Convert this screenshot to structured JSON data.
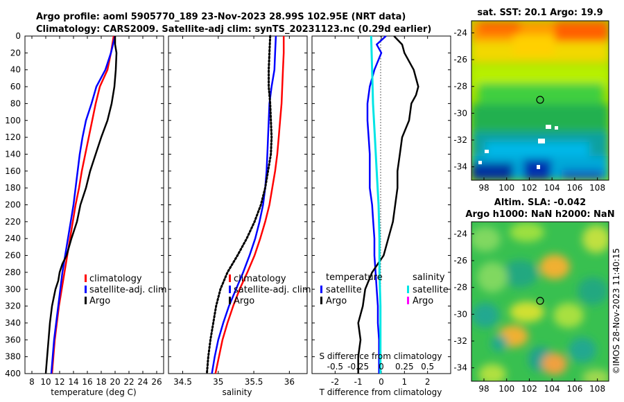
{
  "header": {
    "line1": "Argo profile: aoml 5905770_189 23-Nov-2023 28.99S 102.95E (NRT data)",
    "line2": "Climatology: CARS2009. Satellite-adj clim: synTS_20231123.nc (0.29d earlier)"
  },
  "depth_ticks": [
    "0",
    "20",
    "40",
    "60",
    "80",
    "100",
    "120",
    "140",
    "160",
    "180",
    "200",
    "220",
    "240",
    "260",
    "280",
    "300",
    "320",
    "340",
    "360",
    "380",
    "400"
  ],
  "watermark": "©IMOS 28-Nov-2023 11:40:15",
  "colors": {
    "climatology": "#ff0000",
    "satellite": "#0000ff",
    "argo": "#000000",
    "salinity_sat": "#00e5e5",
    "salinity_argo": "#ff00ff"
  },
  "chart_data": [
    {
      "type": "line",
      "panel": "temperature",
      "xlabel": "temperature (deg C)",
      "ylabel": "",
      "xlim": [
        7,
        27
      ],
      "ylim": [
        400,
        0
      ],
      "xticks": [
        8,
        10,
        12,
        14,
        16,
        18,
        20,
        22,
        24,
        26
      ],
      "xtick_labels": [
        "8",
        "10",
        "12",
        "14",
        "16",
        "18",
        "20",
        "22",
        "24",
        "26"
      ],
      "legend": [
        "climatology",
        "satellite-adj. clim",
        "Argo"
      ],
      "legend_position": "bottom-right",
      "series": [
        {
          "name": "climatology",
          "color": "#ff0000",
          "depth": [
            0,
            20,
            40,
            60,
            80,
            100,
            120,
            140,
            160,
            180,
            200,
            220,
            240,
            260,
            280,
            300,
            320,
            340,
            360,
            380,
            400
          ],
          "values": [
            19.8,
            19.4,
            18.9,
            17.8,
            17.2,
            16.7,
            16.2,
            15.7,
            15.2,
            14.8,
            14.3,
            13.9,
            13.5,
            13.1,
            12.7,
            12.3,
            11.9,
            11.6,
            11.3,
            11.1,
            10.9
          ]
        },
        {
          "name": "satellite-adj. clim",
          "color": "#0000ff",
          "depth": [
            0,
            20,
            40,
            60,
            80,
            100,
            120,
            140,
            160,
            180,
            200,
            220,
            240,
            260,
            280,
            300,
            320,
            340,
            360,
            380,
            400
          ],
          "values": [
            20.0,
            19.4,
            18.6,
            17.3,
            16.6,
            15.8,
            15.3,
            14.9,
            14.6,
            14.3,
            14.0,
            13.6,
            13.2,
            12.8,
            12.4,
            12.1,
            11.8,
            11.5,
            11.2,
            11.0,
            10.8
          ]
        },
        {
          "name": "Argo",
          "color": "#000000",
          "depth": [
            0,
            10,
            20,
            40,
            60,
            80,
            100,
            120,
            140,
            160,
            180,
            200,
            220,
            240,
            260,
            270,
            280,
            290,
            300,
            320,
            340,
            360,
            380,
            400
          ],
          "values": [
            20.0,
            20.0,
            20.2,
            20.1,
            19.9,
            19.5,
            18.9,
            18.0,
            17.2,
            16.4,
            15.8,
            15.0,
            14.5,
            13.7,
            13.0,
            12.4,
            12.0,
            11.8,
            11.4,
            10.9,
            10.6,
            10.4,
            10.2,
            10.0
          ]
        }
      ]
    },
    {
      "type": "line",
      "panel": "salinity",
      "xlabel": "salinity",
      "ylabel": "",
      "xlim": [
        34.3,
        36.25
      ],
      "ylim": [
        400,
        0
      ],
      "xticks": [
        34.5,
        35,
        35.5,
        36
      ],
      "xtick_labels": [
        "34.5",
        "35",
        "35.5",
        "36"
      ],
      "legend": [
        "climatology",
        "satellite-adj. clim",
        "Argo"
      ],
      "legend_position": "bottom-right",
      "series": [
        {
          "name": "climatology",
          "color": "#ff0000",
          "depth": [
            0,
            20,
            40,
            60,
            80,
            100,
            120,
            140,
            160,
            180,
            200,
            220,
            240,
            260,
            280,
            300,
            320,
            340,
            360,
            380,
            400
          ],
          "values": [
            35.92,
            35.92,
            35.91,
            35.9,
            35.89,
            35.87,
            35.85,
            35.83,
            35.8,
            35.76,
            35.72,
            35.66,
            35.59,
            35.51,
            35.41,
            35.3,
            35.21,
            35.13,
            35.06,
            35.01,
            34.96
          ]
        },
        {
          "name": "satellite-adj. clim",
          "color": "#0000ff",
          "depth": [
            0,
            20,
            40,
            60,
            80,
            100,
            120,
            140,
            160,
            180,
            200,
            220,
            240,
            260,
            280,
            300,
            320,
            340,
            360,
            380,
            400
          ],
          "values": [
            35.81,
            35.8,
            35.79,
            35.75,
            35.72,
            35.71,
            35.7,
            35.69,
            35.68,
            35.66,
            35.63,
            35.58,
            35.52,
            35.44,
            35.35,
            35.25,
            35.15,
            35.07,
            35.0,
            34.95,
            34.91
          ]
        },
        {
          "name": "Argo",
          "color": "#000000",
          "depth": [
            0,
            20,
            40,
            60,
            80,
            100,
            120,
            140,
            160,
            180,
            200,
            220,
            240,
            260,
            280,
            300,
            320,
            340,
            360,
            380,
            400
          ],
          "values": [
            35.73,
            35.72,
            35.71,
            35.71,
            35.73,
            35.74,
            35.75,
            35.74,
            35.7,
            35.66,
            35.6,
            35.51,
            35.4,
            35.27,
            35.13,
            35.03,
            34.97,
            34.93,
            34.89,
            34.86,
            34.84
          ]
        }
      ]
    },
    {
      "type": "line",
      "panel": "differences",
      "xlabel": "T difference from climatology",
      "top_xlabel": "S difference from climatology",
      "xlim": [
        -3,
        3
      ],
      "ylim": [
        400,
        0
      ],
      "xticks": [
        -2,
        -1,
        0,
        1,
        2
      ],
      "xtick_labels": [
        "-2",
        "-1",
        "0",
        "1",
        "2"
      ],
      "s_xticks": [
        -0.5,
        -0.25,
        0,
        0.25,
        0.5
      ],
      "s_xtick_labels": [
        "-0.5",
        "-0.25",
        "0",
        "0.25",
        "0.5"
      ],
      "legend_temperature_title": "temperature",
      "legend_salinity_title": "salinity",
      "legend_temperature": [
        "satellite",
        "Argo"
      ],
      "legend_salinity": [
        "satellite",
        "Argo"
      ],
      "series": [
        {
          "name": "T satellite",
          "color": "#0000ff",
          "depth": [
            0,
            10,
            20,
            40,
            60,
            80,
            100,
            120,
            140,
            160,
            180,
            200,
            220,
            240,
            260,
            280,
            300,
            320,
            340,
            360,
            380,
            400
          ],
          "values": [
            0.2,
            -0.2,
            0.0,
            -0.3,
            -0.5,
            -0.6,
            -0.6,
            -0.55,
            -0.5,
            -0.5,
            -0.5,
            -0.4,
            -0.35,
            -0.3,
            -0.3,
            -0.25,
            -0.2,
            -0.15,
            -0.15,
            -0.1,
            -0.1,
            -0.1
          ]
        },
        {
          "name": "T Argo",
          "color": "#000000",
          "depth": [
            0,
            10,
            20,
            40,
            60,
            70,
            80,
            100,
            120,
            140,
            160,
            180,
            200,
            220,
            240,
            260,
            280,
            300,
            320,
            340,
            360,
            380,
            400
          ],
          "values": [
            0.55,
            0.9,
            1.0,
            1.4,
            1.6,
            1.5,
            1.3,
            1.2,
            0.9,
            0.8,
            0.7,
            0.7,
            0.6,
            0.5,
            0.3,
            0.1,
            -0.4,
            -0.7,
            -0.8,
            -1.0,
            -0.9,
            -1.0,
            -1.0
          ]
        },
        {
          "name": "S satellite",
          "color": "#00e5e5",
          "depth": [
            0,
            40,
            80,
            120,
            160,
            200,
            240,
            280,
            320,
            360,
            400
          ],
          "values": [
            -0.11,
            -0.1,
            -0.09,
            -0.07,
            -0.05,
            -0.03,
            -0.02,
            -0.02,
            -0.01,
            -0.01,
            -0.01
          ]
        }
      ]
    },
    {
      "type": "heatmap",
      "panel": "satellite SST map",
      "title": "sat. SST: 20.1 Argo: 19.9",
      "x_range": [
        96.9,
        109
      ],
      "y_range": [
        -35,
        -23.1
      ],
      "xtick_labels": [
        "98",
        "100",
        "102",
        "104",
        "106",
        "108"
      ],
      "ytick_labels": [
        "-24",
        "-26",
        "-28",
        "-30",
        "-32",
        "-34"
      ],
      "marker": {
        "lon": 102.95,
        "lat": -29.0
      }
    },
    {
      "type": "heatmap",
      "panel": "altimetry SLA map",
      "title": "Altim. SLA: -0.042",
      "subtitle": "Argo h1000: NaN h2000: NaN",
      "x_range": [
        96.9,
        109
      ],
      "y_range": [
        -35,
        -23.1
      ],
      "xtick_labels": [
        "98",
        "100",
        "102",
        "104",
        "106",
        "108"
      ],
      "ytick_labels": [
        "-24",
        "-26",
        "-28",
        "-30",
        "-32",
        "-34"
      ],
      "marker": {
        "lon": 102.95,
        "lat": -29.0
      }
    }
  ]
}
